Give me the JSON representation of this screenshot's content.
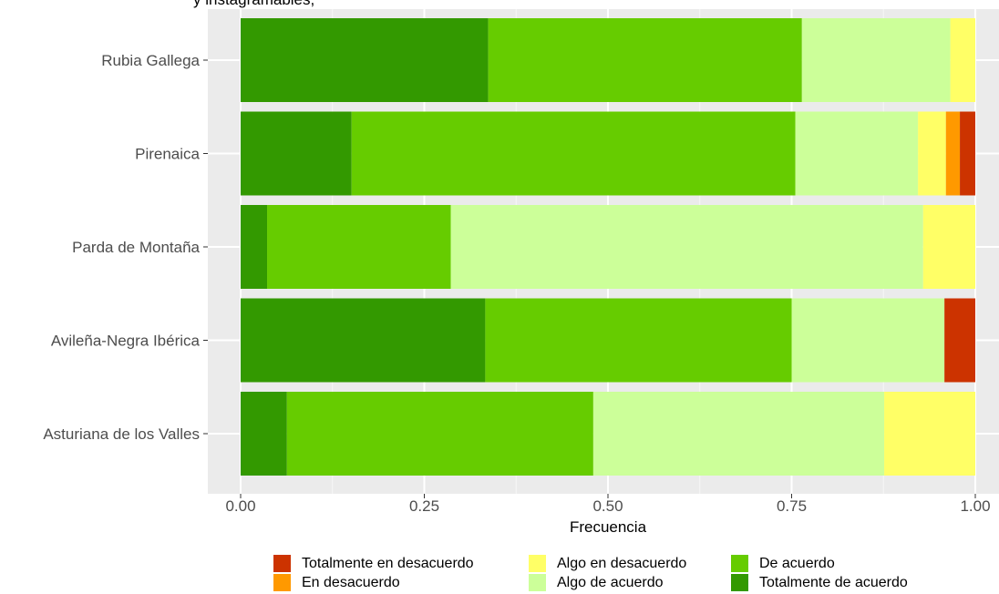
{
  "chart_data": {
    "type": "bar",
    "orientation": "horizontal",
    "stacked": "fill",
    "title_fragment": "y instagramables,",
    "categories": [
      "Rubia Gallega",
      "Pirenaica",
      "Parda de Montaña",
      "Avileña-Negra Ibérica",
      "Asturiana de los Valles"
    ],
    "series": [
      {
        "name": "Totalmente de acuerdo",
        "color": "#339900",
        "values": [
          0.337,
          0.151,
          0.036,
          0.333,
          0.063
        ]
      },
      {
        "name": "De acuerdo",
        "color": "#66cc00",
        "values": [
          0.427,
          0.604,
          0.25,
          0.417,
          0.417
        ]
      },
      {
        "name": "Algo de acuerdo",
        "color": "#ccff99",
        "values": [
          0.202,
          0.167,
          0.643,
          0.208,
          0.396
        ]
      },
      {
        "name": "Algo en desacuerdo",
        "color": "#ffff66",
        "values": [
          0.034,
          0.038,
          0.071,
          0.0,
          0.124
        ]
      },
      {
        "name": "En desacuerdo",
        "color": "#ff9900",
        "values": [
          0.0,
          0.019,
          0.0,
          0.0,
          0.0
        ]
      },
      {
        "name": "Totalmente en desacuerdo",
        "color": "#cc3300",
        "values": [
          0.0,
          0.021,
          0.0,
          0.042,
          0.0
        ]
      }
    ],
    "xlabel": "Frecuencia",
    "ylabel": "",
    "xlim": [
      0,
      1
    ],
    "x_ticks": [
      "0.00",
      "0.25",
      "0.50",
      "0.75",
      "1.00"
    ],
    "x_tick_values": [
      0,
      0.25,
      0.5,
      0.75,
      1.0
    ],
    "grid": true,
    "legend_position": "bottom",
    "legend_order": [
      "Totalmente en desacuerdo",
      "En desacuerdo",
      "Algo en desacuerdo",
      "Algo de acuerdo",
      "De acuerdo",
      "Totalmente de acuerdo"
    ]
  }
}
